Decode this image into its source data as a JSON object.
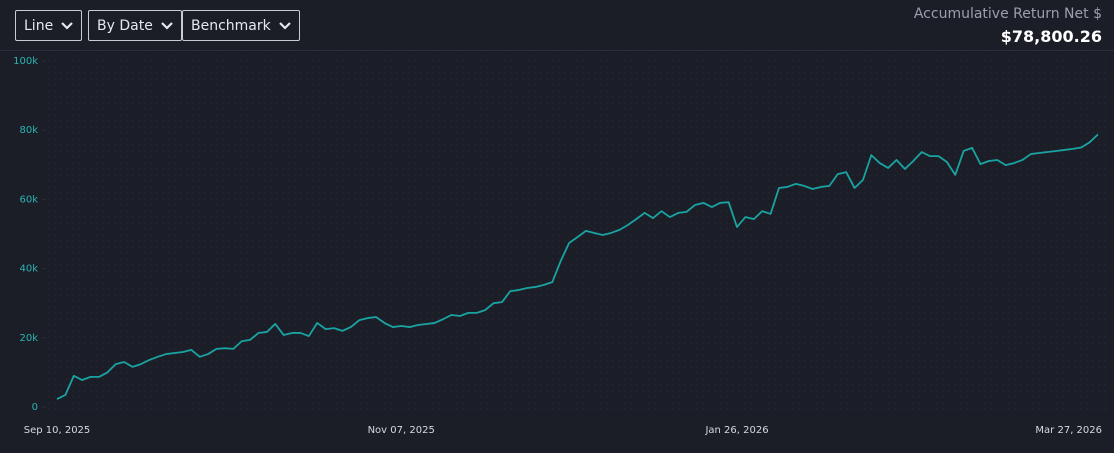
{
  "toolbar": {
    "buttons": [
      "Line",
      "By Date",
      "Benchmark"
    ]
  },
  "summary": {
    "label": "Accumulative Return Net $",
    "value": "$78,800.26"
  },
  "chart_data": {
    "type": "line",
    "color": "#1aa3a3",
    "categories": [
      "Sep 10, 2025",
      null,
      null,
      null,
      null,
      null,
      null,
      null,
      null,
      null,
      null,
      null,
      null,
      null,
      null,
      null,
      null,
      null,
      null,
      null,
      null,
      null,
      null,
      null,
      null,
      null,
      null,
      null,
      null,
      null,
      null,
      null,
      null,
      null,
      null,
      null,
      null,
      null,
      null,
      null,
      null,
      "Nov 07, 2025",
      null,
      null,
      null,
      null,
      null,
      null,
      null,
      null,
      null,
      null,
      null,
      null,
      null,
      null,
      null,
      null,
      null,
      null,
      null,
      null,
      null,
      null,
      null,
      null,
      null,
      null,
      null,
      null,
      null,
      null,
      null,
      null,
      null,
      null,
      null,
      null,
      null,
      null,
      null,
      "Jan 26, 2026",
      null,
      null,
      null,
      null,
      null,
      null,
      null,
      null,
      null,
      null,
      null,
      null,
      null,
      null,
      null,
      null,
      null,
      null,
      null,
      null,
      null,
      null,
      null,
      null,
      null,
      null,
      null,
      null,
      null,
      null,
      null,
      null,
      null,
      null,
      null,
      null,
      null,
      null,
      null,
      null,
      null,
      null,
      "Mar 27, 2026"
    ],
    "values": [
      2300,
      3500,
      9000,
      7800,
      8700,
      8700,
      10000,
      12400,
      13000,
      11600,
      12400,
      13600,
      14500,
      15300,
      15600,
      15900,
      16500,
      14500,
      15300,
      16800,
      17000,
      16800,
      19000,
      19400,
      21400,
      21700,
      24000,
      20800,
      21400,
      21400,
      20500,
      24300,
      22500,
      22800,
      22000,
      23100,
      25100,
      25700,
      26000,
      24300,
      23100,
      23400,
      23100,
      23700,
      24000,
      24300,
      25400,
      26600,
      26300,
      27200,
      27200,
      28000,
      30000,
      30300,
      33500,
      33800,
      34400,
      34700,
      35300,
      36100,
      42200,
      47400,
      49100,
      50900,
      50300,
      49700,
      50300,
      51200,
      52600,
      54300,
      56100,
      54600,
      56600,
      54900,
      56100,
      56400,
      58400,
      59000,
      57800,
      59000,
      59200,
      52000,
      54900,
      54300,
      56600,
      55800,
      63300,
      63600,
      64500,
      63900,
      63000,
      63600,
      63900,
      67300,
      67900,
      63300,
      65600,
      72800,
      70500,
      69100,
      71400,
      68800,
      71100,
      73700,
      72500,
      72500,
      70800,
      67100,
      74000,
      74900,
      70200,
      71100,
      71400,
      69900,
      70500,
      71400,
      73100,
      73400,
      73700,
      74000,
      74300,
      74600,
      75000,
      76500,
      78800
    ],
    "ylim": [
      0,
      100000
    ],
    "yticks": [
      0,
      {
        "value": 20000,
        "label": "20k"
      },
      {
        "value": 40000,
        "label": "40k"
      },
      {
        "value": 60000,
        "label": "60k"
      },
      {
        "value": 80000,
        "label": "80k"
      },
      {
        "value": 100000,
        "label": "100k"
      }
    ]
  }
}
